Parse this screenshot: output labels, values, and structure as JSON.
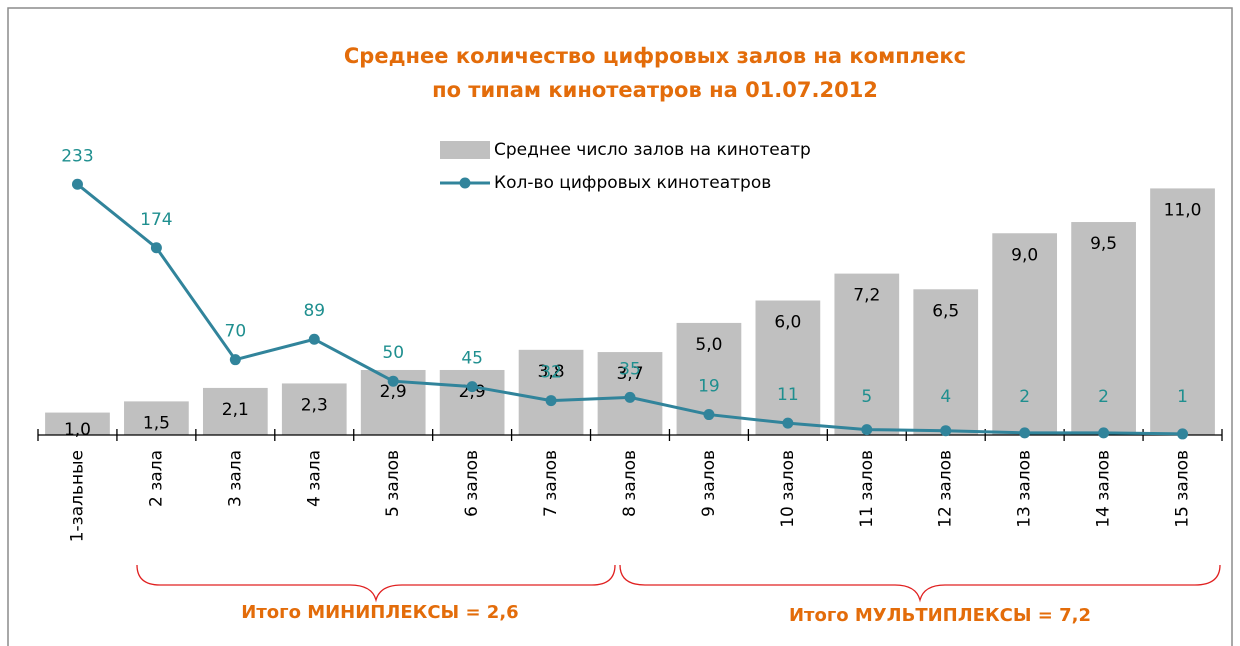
{
  "chart_data": {
    "type": "bar_line",
    "title": [
      "Среднее количество цифровых залов на комплекс",
      "по типам кинотеатров на 01.07.2012"
    ],
    "categories": [
      "1-зальные",
      "2 зала",
      "3 зала",
      "4 зала",
      "5 залов",
      "6 залов",
      "7 залов",
      "8 залов",
      "9 залов",
      "10 залов",
      "11 залов",
      "12 залов",
      "13 залов",
      "14 залов",
      "15 залов"
    ],
    "series": [
      {
        "name": "Среднее число залов на кинотеатр",
        "type": "bar",
        "color": "#c0c0c0",
        "values": [
          1.0,
          1.5,
          2.1,
          2.3,
          2.9,
          2.9,
          3.8,
          3.7,
          5.0,
          6.0,
          7.2,
          6.5,
          9.0,
          9.5,
          11.0
        ],
        "value_labels": [
          "1,0",
          "1,5",
          "2,1",
          "2,3",
          "2,9",
          "2,9",
          "3,8",
          "3,7",
          "5,0",
          "6,0",
          "7,2",
          "6,5",
          "9,0",
          "9,5",
          "11,0"
        ]
      },
      {
        "name": "Кол-во цифровых кинотеатров",
        "type": "line",
        "axis": "y2",
        "color": "#31849b",
        "label_color": "#1f8f8f",
        "values": [
          233,
          174,
          70,
          89,
          50,
          45,
          32,
          35,
          19,
          11,
          5,
          4,
          2,
          2,
          1
        ]
      }
    ],
    "ylim": [
      0,
      12
    ],
    "y2lim": [
      0,
      250
    ],
    "annotations": [
      "Итого МИНИПЛЕКСЫ = 2,6",
      "Итого МУЛЬТИПЛЕКСЫ = 7,2"
    ]
  }
}
